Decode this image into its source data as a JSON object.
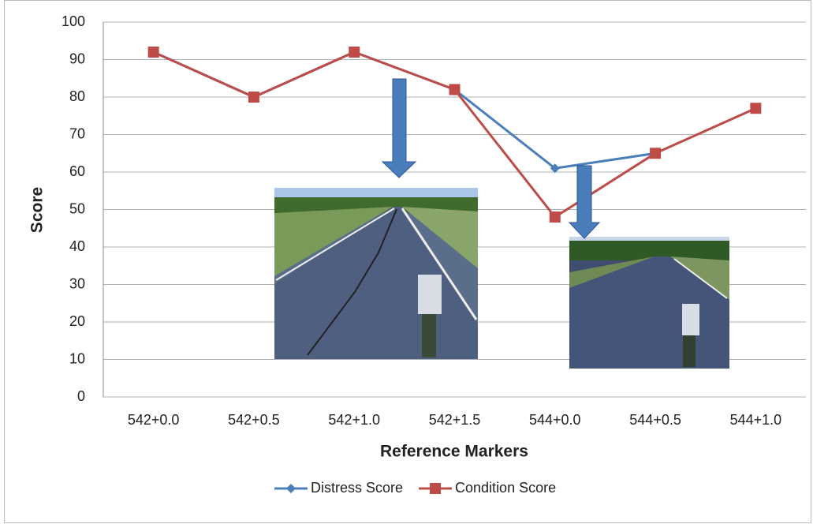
{
  "chart_data": {
    "type": "line",
    "x_label": "Reference Markers",
    "y_label": "Score",
    "categories": [
      "542+0.0",
      "542+0.5",
      "542+1.0",
      "542+1.5",
      "544+0.0",
      "544+0.5",
      "544+1.0"
    ],
    "series": [
      {
        "name": "Distress Score",
        "color": "#4a7ebb",
        "marker": "diamond",
        "values": [
          92,
          80,
          92,
          82,
          61,
          65,
          null
        ]
      },
      {
        "name": "Condition Score",
        "color": "#be4b48",
        "marker": "square",
        "values": [
          92,
          80,
          92,
          82,
          48,
          65,
          77
        ]
      }
    ],
    "ylim": [
      0,
      100
    ],
    "yticks": [
      0,
      10,
      20,
      30,
      40,
      50,
      60,
      70,
      80,
      90,
      100
    ],
    "grid": true,
    "legend": "bottom"
  }
}
